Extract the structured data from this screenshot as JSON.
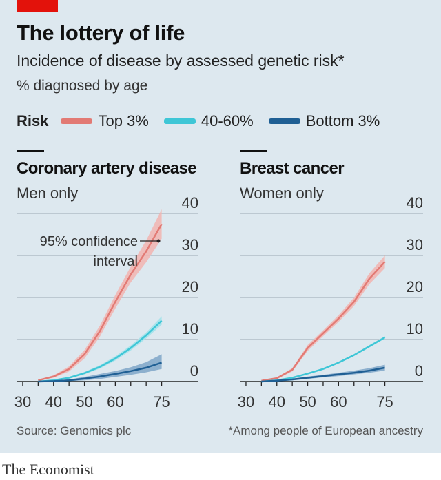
{
  "header": {
    "title": "The lottery of life",
    "subtitle": "Incidence of disease by assessed genetic risk*",
    "unit": "% diagnosed by age"
  },
  "legend": {
    "label": "Risk",
    "items": [
      {
        "label": "Top 3%",
        "color": "#e27a74"
      },
      {
        "label": "40-60%",
        "color": "#3ec6d6"
      },
      {
        "label": "Bottom 3%",
        "color": "#1f5f94"
      }
    ]
  },
  "annotation": {
    "line1": "95% confidence",
    "line2": "interval"
  },
  "footer": {
    "source": "Source: Genomics plc",
    "footnote": "*Among people of European ancestry",
    "brand": "The Economist"
  },
  "chart_data": [
    {
      "type": "line",
      "title": "Coronary artery disease",
      "subtitle": "Men only",
      "xlim": [
        28,
        78
      ],
      "ylim": [
        0,
        40
      ],
      "xticks": [
        30,
        40,
        50,
        60,
        75
      ],
      "yticks": [
        0,
        10,
        20,
        30,
        40
      ],
      "grid": true,
      "series": [
        {
          "name": "Top 3%",
          "x": [
            35,
            40,
            45,
            50,
            55,
            60,
            65,
            70,
            75
          ],
          "values": [
            0.3,
            1.2,
            3,
            6.5,
            12,
            19,
            25.5,
            31,
            37.5
          ],
          "lower": [
            0.2,
            0.9,
            2.4,
            5.5,
            10.7,
            17.4,
            23.6,
            28.4,
            34
          ],
          "upper": [
            0.4,
            1.5,
            3.6,
            7.5,
            13.3,
            20.6,
            27.4,
            33.6,
            41
          ]
        },
        {
          "name": "40-60%",
          "x": [
            35,
            40,
            45,
            50,
            55,
            60,
            65,
            70,
            75
          ],
          "values": [
            0,
            0.3,
            0.9,
            2,
            3.5,
            5.5,
            8,
            11,
            14.5
          ],
          "lower": [
            0,
            0.2,
            0.7,
            1.7,
            3.1,
            5,
            7.4,
            10.3,
            13.5
          ],
          "upper": [
            0,
            0.4,
            1.1,
            2.3,
            3.9,
            6,
            8.6,
            11.7,
            15.5
          ]
        },
        {
          "name": "Bottom 3%",
          "x": [
            35,
            40,
            45,
            50,
            55,
            60,
            65,
            70,
            75
          ],
          "values": [
            0,
            0.1,
            0.3,
            0.7,
            1.2,
            1.8,
            2.5,
            3.3,
            4.5
          ],
          "lower": [
            0,
            0,
            0.1,
            0.3,
            0.6,
            1.1,
            1.6,
            2.2,
            3
          ],
          "upper": [
            0,
            0.2,
            0.5,
            1.1,
            1.8,
            2.5,
            3.4,
            4.6,
            6.5
          ]
        }
      ]
    },
    {
      "type": "line",
      "title": "Breast cancer",
      "subtitle": "Women only",
      "xlim": [
        28,
        78
      ],
      "ylim": [
        0,
        40
      ],
      "xticks": [
        30,
        40,
        50,
        60,
        75
      ],
      "yticks": [
        0,
        10,
        20,
        30,
        40
      ],
      "grid": true,
      "series": [
        {
          "name": "Top 3%",
          "x": [
            35,
            40,
            45,
            50,
            55,
            60,
            65,
            70,
            75
          ],
          "values": [
            0.2,
            0.8,
            2.8,
            8,
            11.5,
            15,
            19,
            24.5,
            28.5
          ],
          "lower": [
            0.1,
            0.6,
            2.4,
            7.3,
            10.8,
            14.2,
            18,
            23.2,
            27
          ],
          "upper": [
            0.3,
            1,
            3.2,
            8.7,
            12.2,
            15.8,
            20,
            25.8,
            30
          ]
        },
        {
          "name": "40-60%",
          "x": [
            35,
            40,
            45,
            50,
            55,
            60,
            65,
            70,
            75
          ],
          "values": [
            0,
            0.3,
            0.9,
            1.9,
            3,
            4.5,
            6.3,
            8.4,
            10.5
          ],
          "lower": [
            0,
            0.2,
            0.8,
            1.8,
            2.8,
            4.3,
            6.1,
            8.1,
            10.2
          ],
          "upper": [
            0,
            0.4,
            1,
            2,
            3.2,
            4.7,
            6.5,
            8.7,
            10.8
          ]
        },
        {
          "name": "Bottom 3%",
          "x": [
            35,
            40,
            45,
            50,
            55,
            60,
            65,
            70,
            75
          ],
          "values": [
            0,
            0.2,
            0.5,
            0.9,
            1.3,
            1.7,
            2.1,
            2.6,
            3.3
          ],
          "lower": [
            0,
            0.1,
            0.3,
            0.6,
            1,
            1.3,
            1.7,
            2.1,
            2.6
          ],
          "upper": [
            0,
            0.3,
            0.7,
            1.2,
            1.6,
            2.1,
            2.6,
            3.2,
            4
          ]
        }
      ]
    }
  ]
}
